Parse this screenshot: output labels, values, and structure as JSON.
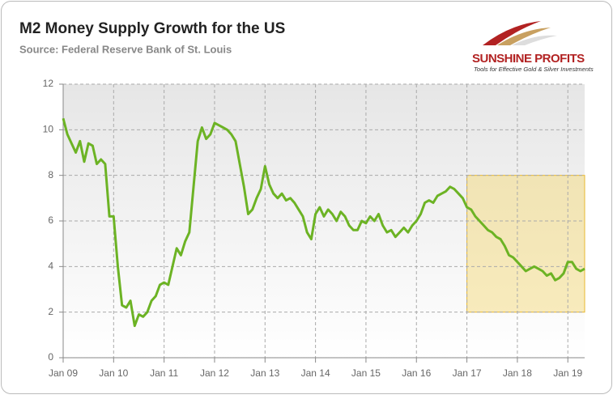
{
  "chart_data": {
    "type": "line",
    "title": "M2 Money Supply Growth for the US",
    "subtitle": "Source: Federal Reserve Bank of St. Louis",
    "logo": {
      "name": "SUNSHINE PROFITS",
      "tagline": "Tools for Effective Gold & Silver Investments"
    },
    "color": "#6cb324",
    "x": [
      "2009-01",
      "2009-02",
      "2009-03",
      "2009-04",
      "2009-05",
      "2009-06",
      "2009-07",
      "2009-08",
      "2009-09",
      "2009-10",
      "2009-11",
      "2009-12",
      "2010-01",
      "2010-02",
      "2010-03",
      "2010-04",
      "2010-05",
      "2010-06",
      "2010-07",
      "2010-08",
      "2010-09",
      "2010-10",
      "2010-11",
      "2010-12",
      "2011-01",
      "2011-02",
      "2011-03",
      "2011-04",
      "2011-05",
      "2011-06",
      "2011-07",
      "2011-08",
      "2011-09",
      "2011-10",
      "2011-11",
      "2011-12",
      "2012-01",
      "2012-02",
      "2012-03",
      "2012-04",
      "2012-05",
      "2012-06",
      "2012-07",
      "2012-08",
      "2012-09",
      "2012-10",
      "2012-11",
      "2012-12",
      "2013-01",
      "2013-02",
      "2013-03",
      "2013-04",
      "2013-05",
      "2013-06",
      "2013-07",
      "2013-08",
      "2013-09",
      "2013-10",
      "2013-11",
      "2013-12",
      "2014-01",
      "2014-02",
      "2014-03",
      "2014-04",
      "2014-05",
      "2014-06",
      "2014-07",
      "2014-08",
      "2014-09",
      "2014-10",
      "2014-11",
      "2014-12",
      "2015-01",
      "2015-02",
      "2015-03",
      "2015-04",
      "2015-05",
      "2015-06",
      "2015-07",
      "2015-08",
      "2015-09",
      "2015-10",
      "2015-11",
      "2015-12",
      "2016-01",
      "2016-02",
      "2016-03",
      "2016-04",
      "2016-05",
      "2016-06",
      "2016-07",
      "2016-08",
      "2016-09",
      "2016-10",
      "2016-11",
      "2016-12",
      "2017-01",
      "2017-02",
      "2017-03",
      "2017-04",
      "2017-05",
      "2017-06",
      "2017-07",
      "2017-08",
      "2017-09",
      "2017-10",
      "2017-11",
      "2017-12",
      "2018-01",
      "2018-02",
      "2018-03",
      "2018-04",
      "2018-05",
      "2018-06",
      "2018-07",
      "2018-08",
      "2018-09",
      "2018-10",
      "2018-11",
      "2018-12",
      "2019-01",
      "2019-02",
      "2019-03",
      "2019-04",
      "2019-05"
    ],
    "values": [
      10.5,
      9.8,
      9.4,
      9.0,
      9.5,
      8.6,
      9.4,
      9.3,
      8.5,
      8.7,
      8.5,
      6.2,
      6.2,
      4.0,
      2.3,
      2.2,
      2.5,
      1.4,
      1.9,
      1.8,
      2.0,
      2.5,
      2.7,
      3.2,
      3.3,
      3.2,
      4.0,
      4.8,
      4.5,
      5.1,
      5.5,
      7.5,
      9.5,
      10.1,
      9.6,
      9.8,
      10.3,
      10.2,
      10.1,
      10.0,
      9.8,
      9.5,
      8.5,
      7.5,
      6.3,
      6.5,
      7.0,
      7.4,
      8.4,
      7.6,
      7.2,
      7.0,
      7.2,
      6.9,
      7.0,
      6.8,
      6.5,
      6.2,
      5.5,
      5.2,
      6.3,
      6.6,
      6.2,
      6.5,
      6.3,
      6.0,
      6.4,
      6.2,
      5.8,
      5.6,
      5.6,
      6.0,
      5.9,
      6.2,
      6.0,
      6.3,
      5.8,
      5.5,
      5.6,
      5.3,
      5.5,
      5.7,
      5.5,
      5.8,
      6.0,
      6.3,
      6.8,
      6.9,
      6.8,
      7.1,
      7.2,
      7.3,
      7.5,
      7.4,
      7.2,
      7.0,
      6.6,
      6.5,
      6.2,
      6.0,
      5.8,
      5.6,
      5.5,
      5.3,
      5.2,
      4.9,
      4.5,
      4.4,
      4.2,
      4.0,
      3.8,
      3.9,
      4.0,
      3.9,
      3.8,
      3.6,
      3.7,
      3.4,
      3.5,
      3.7,
      4.2,
      4.2,
      3.9,
      3.8,
      3.9
    ],
    "xlim": [
      "2009-01",
      "2019-05"
    ],
    "xticks": [
      {
        "value": "2009-01",
        "label": "Jan 09"
      },
      {
        "value": "2010-01",
        "label": "Jan 10"
      },
      {
        "value": "2011-01",
        "label": "Jan 11"
      },
      {
        "value": "2012-01",
        "label": "Jan 12"
      },
      {
        "value": "2013-01",
        "label": "Jan 13"
      },
      {
        "value": "2014-01",
        "label": "Jan 14"
      },
      {
        "value": "2015-01",
        "label": "Jan 15"
      },
      {
        "value": "2016-01",
        "label": "Jan 16"
      },
      {
        "value": "2017-01",
        "label": "Jan 17"
      },
      {
        "value": "2018-01",
        "label": "Jan 18"
      },
      {
        "value": "2019-01",
        "label": "Jan 19"
      }
    ],
    "ylim": [
      0,
      12
    ],
    "yticks": [
      0,
      2,
      4,
      6,
      8,
      10,
      12
    ],
    "grid": true,
    "highlight": {
      "x": [
        "2017-01",
        "2019-05"
      ],
      "y": [
        2,
        8
      ],
      "color": "#f5d66e"
    }
  }
}
